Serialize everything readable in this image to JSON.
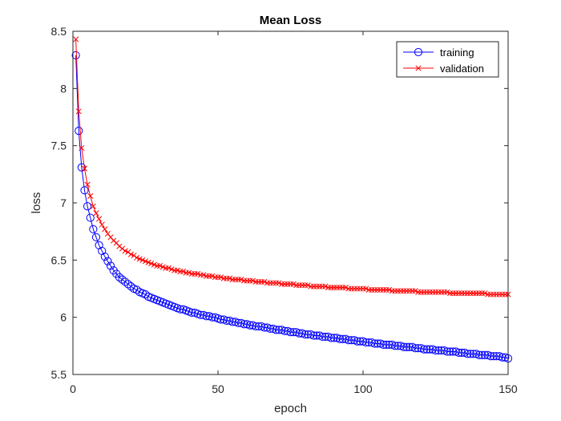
{
  "chart_data": {
    "type": "line",
    "title": "Mean Loss",
    "xlabel": "epoch",
    "ylabel": "loss",
    "xlim": [
      0,
      150
    ],
    "ylim": [
      5.5,
      8.5
    ],
    "xticks": [
      0,
      50,
      100,
      150
    ],
    "yticks": [
      5.5,
      6,
      6.5,
      7,
      7.5,
      8,
      8.5
    ],
    "xtick_labels": [
      "0",
      "50",
      "100",
      "150"
    ],
    "ytick_labels": [
      "5.5",
      "6",
      "6.5",
      "7",
      "7.5",
      "8",
      "8.5"
    ],
    "grid": false,
    "legend_position": "top-right",
    "epochs": {
      "start": 1,
      "end": 150
    },
    "series": [
      {
        "name": "training",
        "color": "#0000ff",
        "marker": "circle",
        "values": [
          8.29,
          7.63,
          7.31,
          7.11,
          6.97,
          6.87,
          6.77,
          6.7,
          6.63,
          6.58,
          6.53,
          6.49,
          6.45,
          6.41,
          6.38,
          6.35,
          6.33,
          6.31,
          6.29,
          6.27,
          6.25,
          6.24,
          6.22,
          6.21,
          6.2,
          6.18,
          6.17,
          6.16,
          6.15,
          6.14,
          6.13,
          6.12,
          6.11,
          6.1,
          6.09,
          6.08,
          6.07,
          6.07,
          6.06,
          6.05,
          6.04,
          6.04,
          6.03,
          6.02,
          6.02,
          6.01,
          6.01,
          6.0,
          6.0,
          5.99,
          5.98,
          5.98,
          5.97,
          5.97,
          5.96,
          5.96,
          5.95,
          5.95,
          5.94,
          5.94,
          5.93,
          5.93,
          5.92,
          5.92,
          5.92,
          5.91,
          5.91,
          5.9,
          5.9,
          5.89,
          5.89,
          5.89,
          5.88,
          5.88,
          5.87,
          5.87,
          5.87,
          5.86,
          5.86,
          5.85,
          5.85,
          5.85,
          5.84,
          5.84,
          5.84,
          5.83,
          5.83,
          5.83,
          5.82,
          5.82,
          5.82,
          5.81,
          5.81,
          5.81,
          5.8,
          5.8,
          5.8,
          5.79,
          5.79,
          5.79,
          5.78,
          5.78,
          5.78,
          5.77,
          5.77,
          5.77,
          5.76,
          5.76,
          5.76,
          5.76,
          5.75,
          5.75,
          5.75,
          5.74,
          5.74,
          5.74,
          5.74,
          5.73,
          5.73,
          5.73,
          5.72,
          5.72,
          5.72,
          5.72,
          5.71,
          5.71,
          5.71,
          5.71,
          5.7,
          5.7,
          5.7,
          5.7,
          5.69,
          5.69,
          5.69,
          5.68,
          5.68,
          5.68,
          5.68,
          5.67,
          5.67,
          5.67,
          5.67,
          5.66,
          5.66,
          5.66,
          5.66,
          5.65,
          5.65,
          5.64
        ]
      },
      {
        "name": "validation",
        "color": "#ff0000",
        "marker": "x",
        "values": [
          8.43,
          7.8,
          7.48,
          7.3,
          7.16,
          7.06,
          6.97,
          6.91,
          6.86,
          6.81,
          6.77,
          6.73,
          6.7,
          6.67,
          6.65,
          6.62,
          6.6,
          6.58,
          6.57,
          6.55,
          6.54,
          6.52,
          6.51,
          6.5,
          6.49,
          6.48,
          6.47,
          6.46,
          6.45,
          6.45,
          6.44,
          6.43,
          6.43,
          6.42,
          6.41,
          6.41,
          6.4,
          6.4,
          6.39,
          6.39,
          6.38,
          6.38,
          6.38,
          6.37,
          6.37,
          6.36,
          6.36,
          6.36,
          6.35,
          6.35,
          6.35,
          6.34,
          6.34,
          6.34,
          6.33,
          6.33,
          6.33,
          6.33,
          6.32,
          6.32,
          6.32,
          6.32,
          6.31,
          6.31,
          6.31,
          6.31,
          6.3,
          6.3,
          6.3,
          6.3,
          6.3,
          6.29,
          6.29,
          6.29,
          6.29,
          6.29,
          6.28,
          6.28,
          6.28,
          6.28,
          6.28,
          6.27,
          6.27,
          6.27,
          6.27,
          6.27,
          6.27,
          6.26,
          6.26,
          6.26,
          6.26,
          6.26,
          6.26,
          6.26,
          6.25,
          6.25,
          6.25,
          6.25,
          6.25,
          6.25,
          6.25,
          6.24,
          6.24,
          6.24,
          6.24,
          6.24,
          6.24,
          6.24,
          6.24,
          6.23,
          6.23,
          6.23,
          6.23,
          6.23,
          6.23,
          6.23,
          6.23,
          6.23,
          6.22,
          6.22,
          6.22,
          6.22,
          6.22,
          6.22,
          6.22,
          6.22,
          6.22,
          6.22,
          6.22,
          6.21,
          6.21,
          6.21,
          6.21,
          6.21,
          6.21,
          6.21,
          6.21,
          6.21,
          6.21,
          6.21,
          6.21,
          6.21,
          6.2,
          6.2,
          6.2,
          6.2,
          6.2,
          6.2,
          6.2,
          6.2
        ]
      }
    ]
  }
}
